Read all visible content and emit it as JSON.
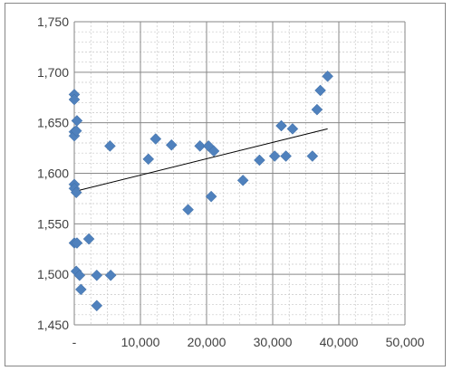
{
  "chart_data": {
    "type": "scatter",
    "title": "",
    "xlabel": "",
    "ylabel": "",
    "xlim": [
      0,
      50000
    ],
    "ylim": [
      1450,
      1750
    ],
    "x_major_step": 10000,
    "y_major_step": 50,
    "x_minor_step": 2500,
    "y_minor_step": 10,
    "grid": true,
    "legend": "none",
    "x_tick_labels": [
      "-",
      "10,000",
      "20,000",
      "30,000",
      "40,000",
      "50,000"
    ],
    "y_tick_labels": [
      "1,450",
      "1,500",
      "1,550",
      "1,600",
      "1,650",
      "1,700",
      "1,750"
    ],
    "marker_color": "#4f81bd",
    "trendline_color": "#000000",
    "points": [
      {
        "x": 0,
        "y": 1678
      },
      {
        "x": 0,
        "y": 1673
      },
      {
        "x": 400,
        "y": 1652
      },
      {
        "x": 0,
        "y": 1641
      },
      {
        "x": 0,
        "y": 1637
      },
      {
        "x": 300,
        "y": 1642
      },
      {
        "x": 0,
        "y": 1589
      },
      {
        "x": 0,
        "y": 1585
      },
      {
        "x": 300,
        "y": 1581
      },
      {
        "x": 0,
        "y": 1531
      },
      {
        "x": 400,
        "y": 1531
      },
      {
        "x": 2200,
        "y": 1535
      },
      {
        "x": 300,
        "y": 1503
      },
      {
        "x": 800,
        "y": 1499
      },
      {
        "x": 1000,
        "y": 1485
      },
      {
        "x": 3400,
        "y": 1499
      },
      {
        "x": 5500,
        "y": 1499
      },
      {
        "x": 3400,
        "y": 1469
      },
      {
        "x": 5400,
        "y": 1627
      },
      {
        "x": 11200,
        "y": 1614
      },
      {
        "x": 12300,
        "y": 1634
      },
      {
        "x": 14700,
        "y": 1628
      },
      {
        "x": 17200,
        "y": 1564
      },
      {
        "x": 19000,
        "y": 1627
      },
      {
        "x": 20300,
        "y": 1627
      },
      {
        "x": 20700,
        "y": 1577
      },
      {
        "x": 21100,
        "y": 1622
      },
      {
        "x": 25500,
        "y": 1593
      },
      {
        "x": 28000,
        "y": 1613
      },
      {
        "x": 30300,
        "y": 1617
      },
      {
        "x": 31300,
        "y": 1647
      },
      {
        "x": 32000,
        "y": 1617
      },
      {
        "x": 33000,
        "y": 1644
      },
      {
        "x": 36000,
        "y": 1617
      },
      {
        "x": 36700,
        "y": 1663
      },
      {
        "x": 37200,
        "y": 1682
      },
      {
        "x": 38300,
        "y": 1696
      }
    ],
    "trendline": {
      "x": [
        0,
        38300
      ],
      "y": [
        1582,
        1644
      ]
    }
  }
}
